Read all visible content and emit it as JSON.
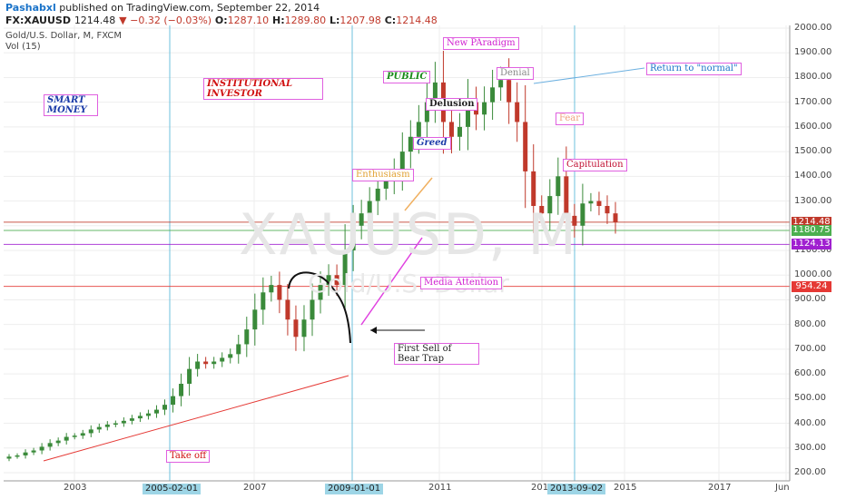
{
  "header": {
    "author": "Pashabxl",
    "published": "published on TradingView.com, September 22, 2014",
    "symbol": "FX:XAUUSD",
    "last": "1214.48",
    "change": "▼ −0.32 (−0.03%)",
    "o_label": "O:",
    "o": "1287.10",
    "h_label": "H:",
    "h": "1289.80",
    "l_label": "L:",
    "l": "1207.98",
    "c_label": "C:",
    "c": "1214.48",
    "subtitle": "Gold/U.S. Dollar, M, FXCM",
    "volume": "Vol (15)"
  },
  "watermark": {
    "symbol": "XAUUSD, M",
    "name": "Gold/U.S. Dollar"
  },
  "colors": {
    "up": "#3a8a3a",
    "down": "#c0392b",
    "grid": "#eeeeee",
    "cycle_line": "#6cc0dc",
    "label_border": "#e060e0"
  },
  "chart_data": {
    "type": "candlestick",
    "title": "Gold/U.S. Dollar, M, FXCM",
    "ylim": [
      200,
      2000
    ],
    "y_ticks": [
      "2000.00",
      "1900.00",
      "1800.00",
      "1700.00",
      "1600.00",
      "1500.00",
      "1400.00",
      "1300.00",
      "1200.00",
      "1100.00",
      "1000.00",
      "900.00",
      "800.00",
      "700.00",
      "600.00",
      "500.00",
      "400.00",
      "300.00",
      "200.00"
    ],
    "x_ticks": [
      "2003",
      "2007",
      "2011",
      "201",
      "2015",
      "2017",
      "Jun"
    ],
    "date_markers": [
      "2005-02-01",
      "2009-01-01",
      "2013-09-02"
    ],
    "price_levels": [
      {
        "label": "1214.48",
        "value": 1214.48,
        "color": "#c0392b"
      },
      {
        "label": "1180.75",
        "value": 1180.75,
        "color": "#4caf50"
      },
      {
        "label": "1124.13",
        "value": 1124.13,
        "color": "#a020d0"
      },
      {
        "label": "954.24",
        "value": 954.24,
        "color": "#e53935"
      }
    ],
    "annotations": [
      {
        "text": "SMART MONEY",
        "color": "#1a3aa8"
      },
      {
        "text": "INSTITUTIONAL INVESTOR",
        "color": "#d01010"
      },
      {
        "text": "PUBLIC",
        "color": "#1a8a1a"
      },
      {
        "text": "New PAradigm",
        "color": "#d020d0"
      },
      {
        "text": "Denial",
        "color": "#888888"
      },
      {
        "text": "Return to \"normal\"",
        "color": "#1a73c9"
      },
      {
        "text": "Delusion",
        "color": "#222222"
      },
      {
        "text": "Fear",
        "color": "#f0a080"
      },
      {
        "text": "Greed",
        "color": "#1a3aa8"
      },
      {
        "text": "Capitulation",
        "color": "#c01030"
      },
      {
        "text": "Enthusiasm",
        "color": "#e0a030"
      },
      {
        "text": "Media Attention",
        "color": "#d020d0"
      },
      {
        "text": "First Sell of Bear Trap",
        "color": "#222222"
      },
      {
        "text": "Take off",
        "color": "#d01010"
      }
    ],
    "series": [
      {
        "close": [
          265,
          270,
          282,
          290,
          305,
          320,
          330,
          345,
          350,
          360,
          375,
          385,
          395,
          400,
          410,
          420,
          430,
          440,
          455,
          475,
          510,
          560,
          620,
          650,
          640,
          650,
          665,
          680,
          720,
          780,
          860,
          930,
          960,
          900,
          820,
          750,
          820,
          900,
          960,
          1000,
          960,
          1100,
          1200,
          1250,
          1300,
          1350,
          1380,
          1420,
          1500,
          1560,
          1620,
          1700,
          1780,
          1620,
          1560,
          1600,
          1700,
          1650,
          1700,
          1760,
          1790,
          1700,
          1620,
          1420,
          1280,
          1250,
          1320,
          1400,
          1240,
          1200,
          1290,
          1300,
          1280,
          1250,
          1214
        ]
      }
    ]
  }
}
